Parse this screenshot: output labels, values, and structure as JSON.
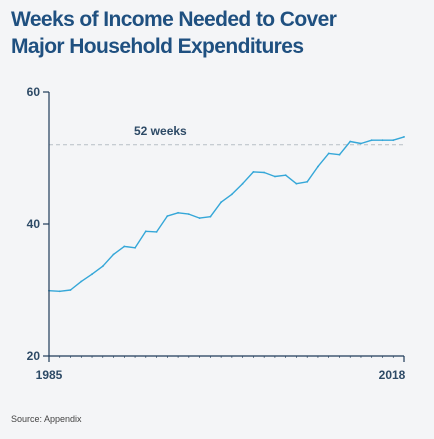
{
  "title_lines": [
    "Weeks of Income Needed to Cover",
    "Major Household Expenditures"
  ],
  "source": "Source: Appendix",
  "colors": {
    "title": "#1f5080",
    "axis_text": "#2d4a66",
    "line": "#35a7d8",
    "reference": "#b7bfc6",
    "axis": "#1f3b59",
    "background": "#f4f5f7"
  },
  "chart_data": {
    "type": "line",
    "title": "Weeks of Income Needed to Cover Major Household Expenditures",
    "xlabel": "",
    "ylabel": "",
    "xlim": [
      1985,
      2018
    ],
    "ylim": [
      20,
      60
    ],
    "yticks": [
      20,
      40,
      60
    ],
    "xtick_labels": [
      "1985",
      "2018"
    ],
    "grid": false,
    "legend": "none",
    "series": [
      {
        "x": [
          1985,
          1986,
          1987,
          1988,
          1989,
          1990,
          1991,
          1992,
          1993,
          1994,
          1995,
          1996,
          1997,
          1998,
          1999,
          2000,
          2001,
          2002,
          2003,
          2004,
          2005,
          2006,
          2007,
          2008,
          2009,
          2010,
          2011,
          2012,
          2013,
          2014,
          2015,
          2016,
          2017,
          2018
        ],
        "values": [
          29.9,
          29.8,
          30.0,
          31.3,
          32.4,
          33.6,
          35.4,
          36.6,
          36.4,
          38.9,
          38.8,
          41.2,
          41.7,
          41.5,
          40.9,
          41.1,
          43.3,
          44.5,
          46.1,
          47.9,
          47.8,
          47.2,
          47.4,
          46.1,
          46.4,
          48.7,
          50.7,
          50.5,
          52.5,
          52.2,
          52.7,
          52.7,
          52.7,
          53.2
        ]
      }
    ],
    "reference_line": {
      "y": 52,
      "label": "52 weeks"
    }
  }
}
